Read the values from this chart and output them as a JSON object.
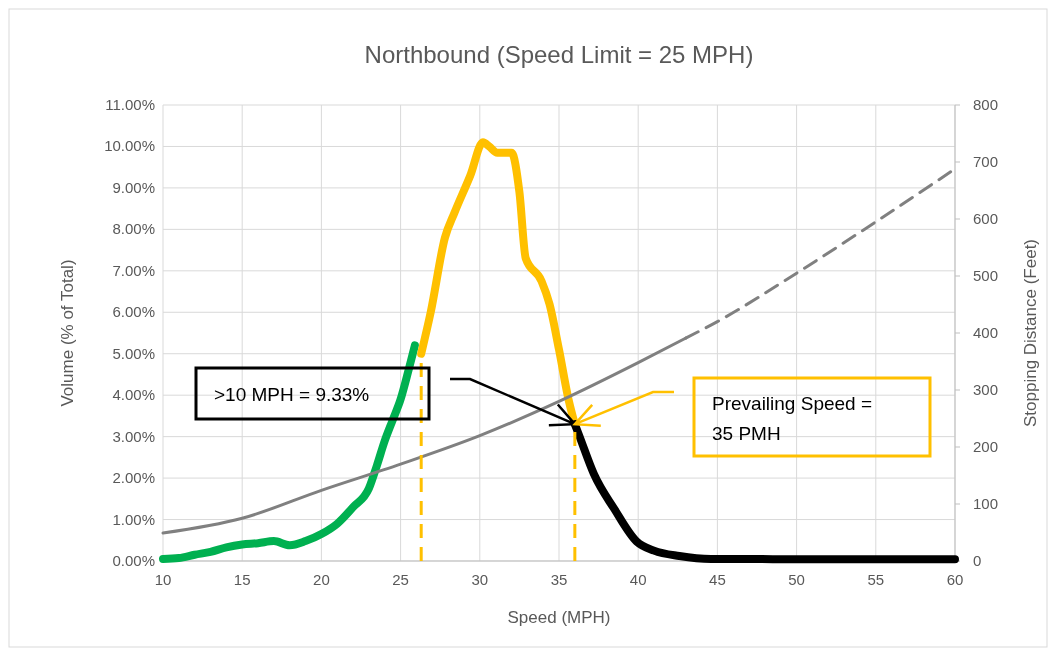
{
  "chart_data": {
    "type": "line",
    "title": "Northbound (Speed Limit = 25 MPH)",
    "xlabel": "Speed (MPH)",
    "ylabel": "Volume (% of Total)",
    "y2label": "Stopping Distance (Feet)",
    "xlim": [
      10,
      60
    ],
    "xticks": [
      10,
      15,
      20,
      25,
      30,
      35,
      40,
      45,
      50,
      55,
      60
    ],
    "ylim": [
      0,
      11
    ],
    "yticks": [
      {
        "value": 0,
        "label": "0.00%"
      },
      {
        "value": 1,
        "label": "1.00%"
      },
      {
        "value": 2,
        "label": "2.00%"
      },
      {
        "value": 3,
        "label": "3.00%"
      },
      {
        "value": 4,
        "label": "4.00%"
      },
      {
        "value": 5,
        "label": "5.00%"
      },
      {
        "value": 6,
        "label": "6.00%"
      },
      {
        "value": 7,
        "label": "7.00%"
      },
      {
        "value": 8,
        "label": "8.00%"
      },
      {
        "value": 9,
        "label": "9.00%"
      },
      {
        "value": 10,
        "label": "10.00%"
      },
      {
        "value": 11,
        "label": "11.00%"
      }
    ],
    "y2lim": [
      0,
      800
    ],
    "y2ticks": [
      0,
      100,
      200,
      300,
      400,
      500,
      600,
      700,
      800
    ],
    "grid": true,
    "marker": "none",
    "series": [
      {
        "color": "#00b050",
        "x": [
          10,
          11,
          12,
          13,
          14,
          15,
          16,
          17,
          18,
          19,
          20,
          21,
          22,
          23,
          23.5,
          24,
          24.5,
          25,
          25.5,
          25.9
        ],
        "values": [
          0.05,
          0.07,
          0.15,
          0.22,
          0.33,
          0.4,
          0.43,
          0.48,
          0.38,
          0.48,
          0.65,
          0.9,
          1.3,
          1.75,
          2.3,
          2.9,
          3.4,
          3.9,
          4.6,
          5.2
        ]
      },
      {
        "color": "#ffc000",
        "x": [
          26.3,
          26.9,
          27.8,
          28.4,
          29.4,
          30.2,
          30.6,
          31.1,
          32.0,
          32.5,
          32.9,
          33.9,
          34.4,
          35.0,
          35.6,
          36.0
        ],
        "values": [
          5.0,
          6.0,
          7.8,
          8.4,
          9.3,
          10.1,
          10.0,
          9.85,
          9.85,
          8.9,
          7.3,
          6.75,
          6.2,
          5.1,
          3.9,
          3.3
        ]
      },
      {
        "color": "#000000",
        "x": [
          36.0,
          36.3,
          37.2,
          38.5,
          39.9,
          41.0,
          42.6,
          44.6,
          47,
          50,
          55,
          60
        ],
        "values": [
          3.3,
          3.0,
          2.1,
          1.25,
          0.47,
          0.25,
          0.12,
          0.05,
          0.05,
          0.04,
          0.04,
          0.04
        ]
      },
      {
        "color": "#808080",
        "axis": "y2",
        "x": [
          10,
          15,
          20,
          25,
          30,
          35,
          40,
          43
        ],
        "values": [
          49,
          75,
          124,
          170,
          220,
          280,
          348,
          391
        ]
      },
      {
        "color": "#808080",
        "axis": "y2",
        "line_style": "dashed",
        "x": [
          43,
          45,
          50,
          55,
          60
        ],
        "values": [
          391,
          420,
          505,
          595,
          688
        ]
      },
      {
        "color": "#ffc000",
        "line_style": "dashed",
        "x": [
          26.3,
          26.3
        ],
        "values": [
          0,
          5.0
        ]
      },
      {
        "color": "#ffc000",
        "line_style": "dashed",
        "x": [
          36.0,
          36.0
        ],
        "values": [
          0,
          3.3
        ]
      }
    ],
    "annotations": [
      ">10 MPH = 9.33%",
      "Prevailing Speed = 35 PMH"
    ]
  }
}
